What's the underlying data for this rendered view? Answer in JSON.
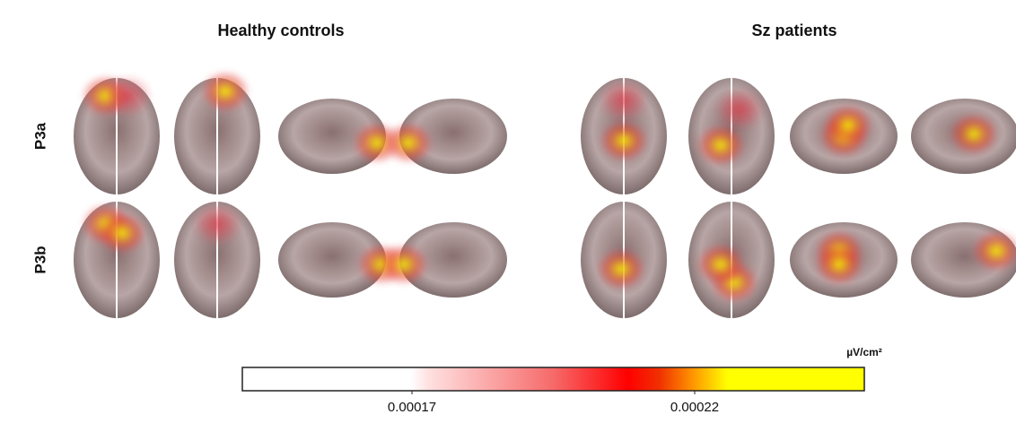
{
  "figure": {
    "columns": [
      "Healthy controls",
      "Sz patients"
    ],
    "rows": [
      "P3a",
      "P3b"
    ],
    "colorbar": {
      "unit": "µV/cm²",
      "lim": [
        0.00014,
        0.00025
      ],
      "ticks": [
        0.00017,
        0.00022
      ]
    }
  }
}
